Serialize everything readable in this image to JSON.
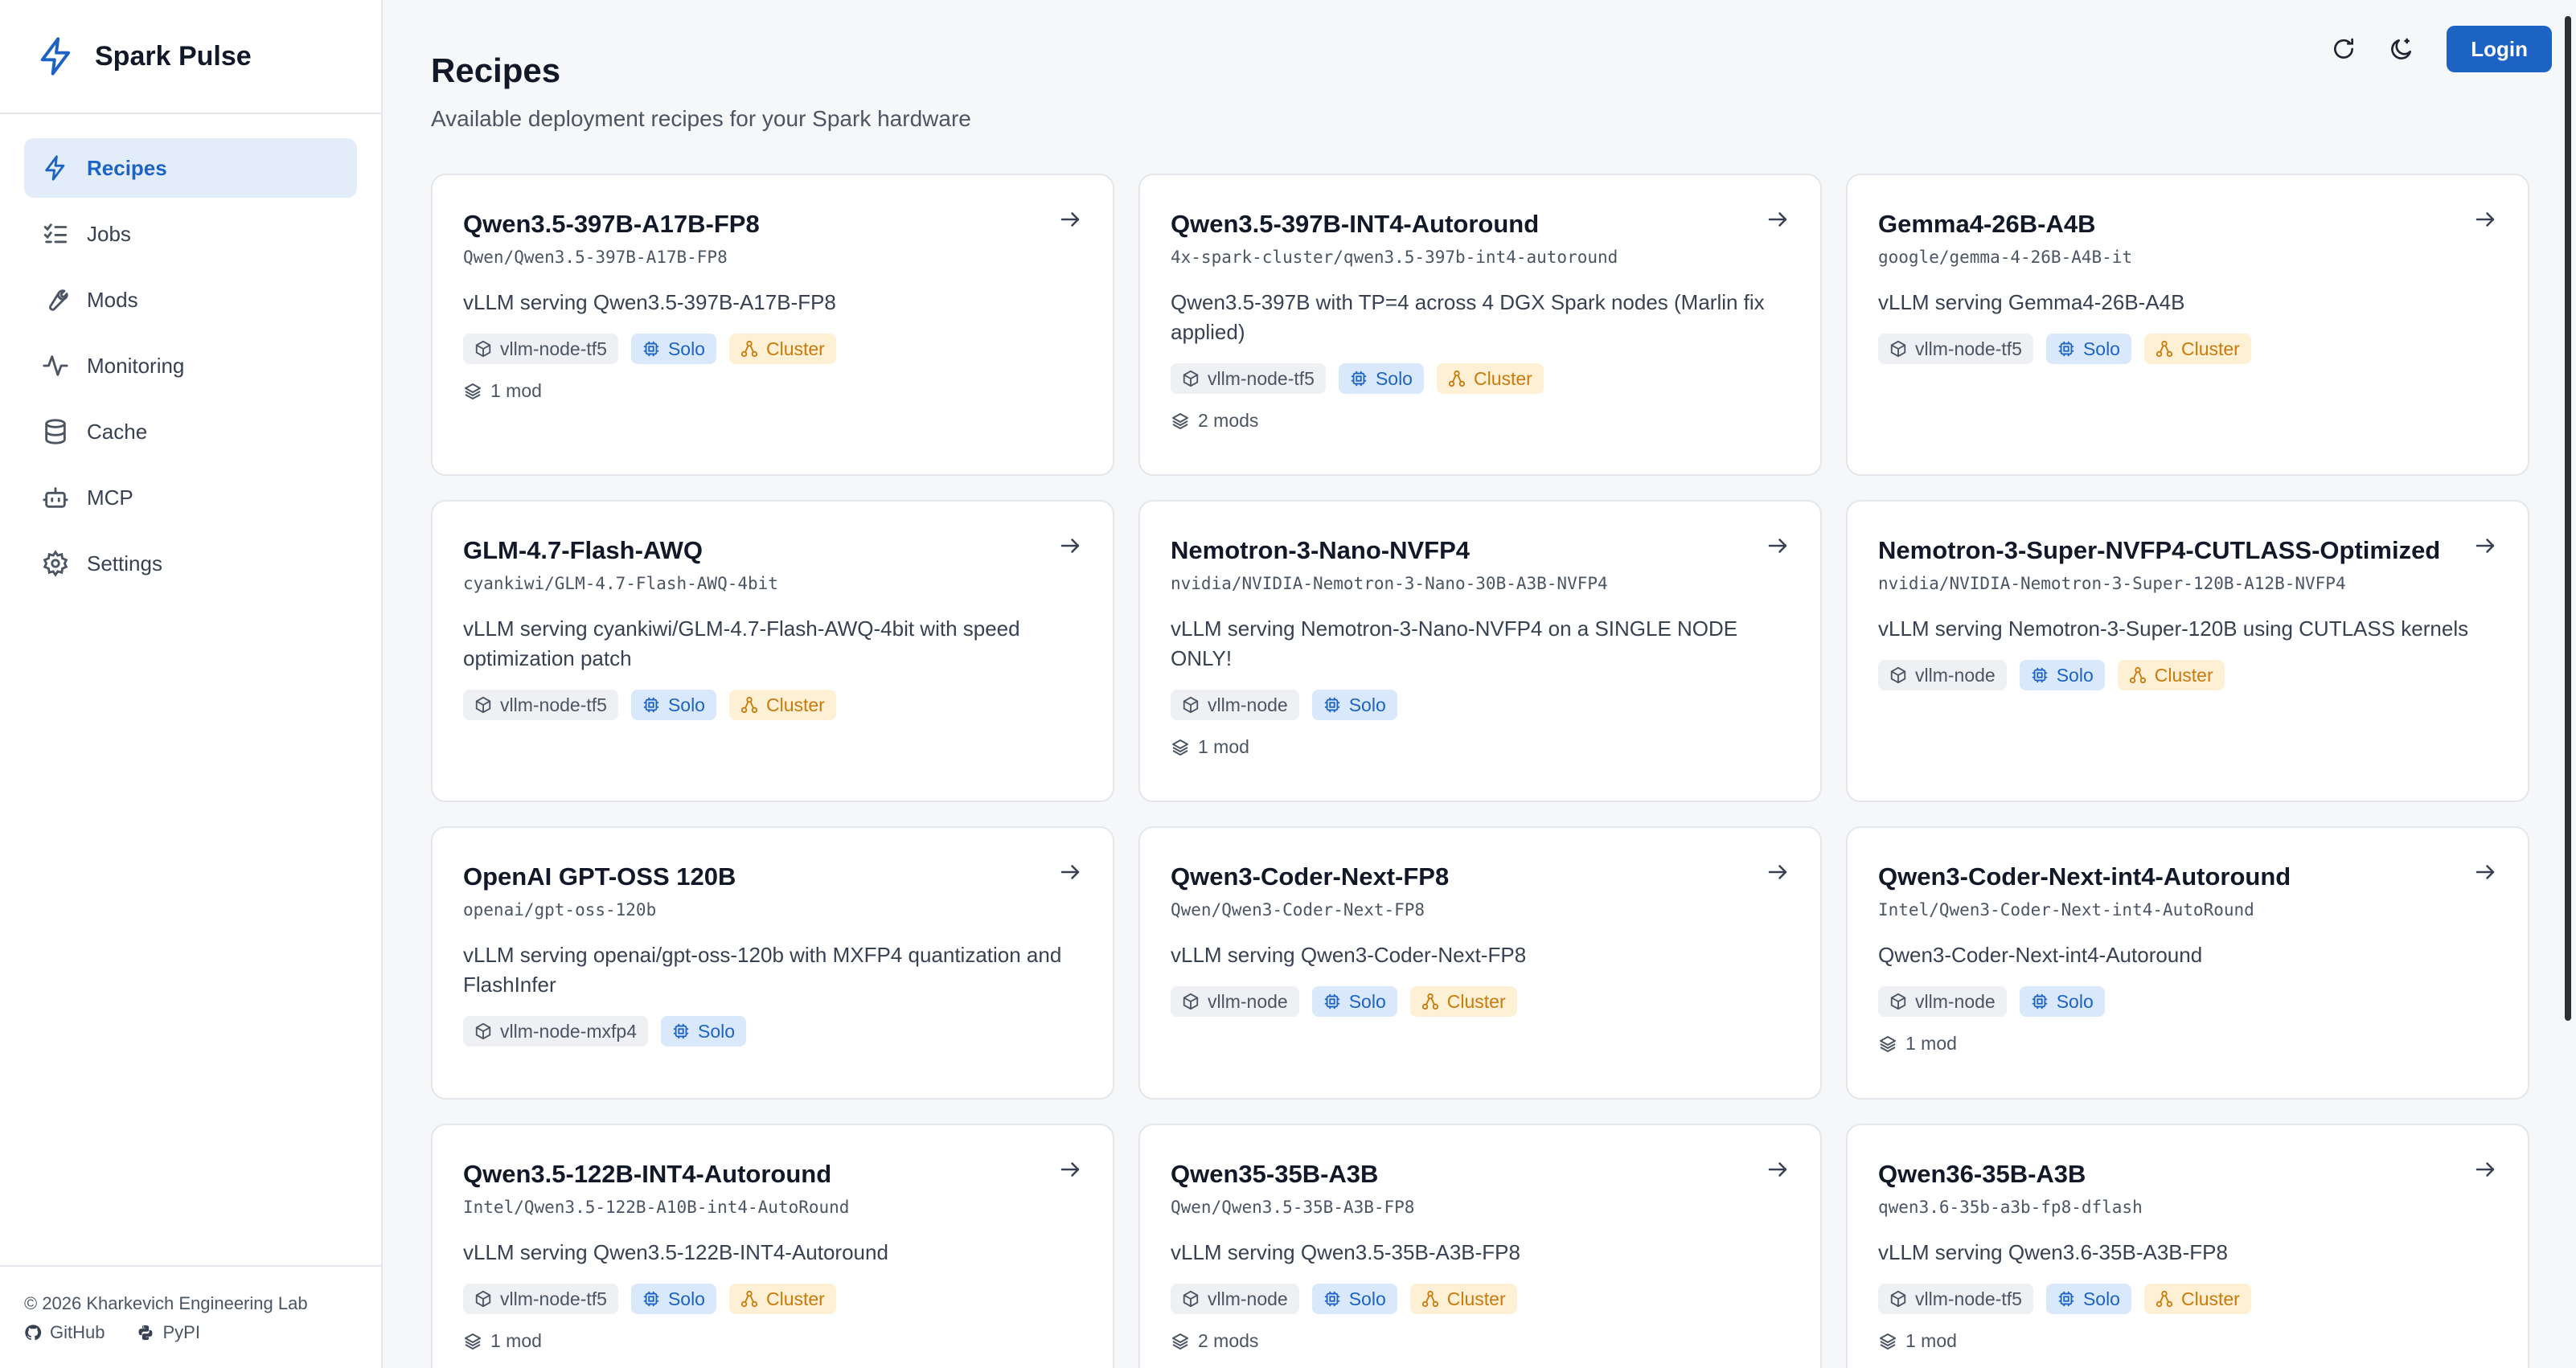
{
  "app": {
    "name": "Spark Pulse"
  },
  "sidebar": {
    "items": [
      {
        "label": "Recipes",
        "icon": "lightning-icon",
        "active": true
      },
      {
        "label": "Jobs",
        "icon": "list-check-icon",
        "active": false
      },
      {
        "label": "Mods",
        "icon": "wrench-icon",
        "active": false
      },
      {
        "label": "Monitoring",
        "icon": "activity-icon",
        "active": false
      },
      {
        "label": "Cache",
        "icon": "database-icon",
        "active": false
      },
      {
        "label": "MCP",
        "icon": "robot-icon",
        "active": false
      },
      {
        "label": "Settings",
        "icon": "gear-icon",
        "active": false
      }
    ],
    "footer": {
      "copyright": "© 2026 Kharkevich Engineering Lab",
      "github": "GitHub",
      "pypi": "PyPI"
    }
  },
  "header": {
    "login_label": "Login"
  },
  "page": {
    "title": "Recipes",
    "subtitle": "Available deployment recipes for your Spark hardware"
  },
  "tags": {
    "solo": "Solo",
    "cluster": "Cluster"
  },
  "recipes": [
    {
      "title": "Qwen3.5-397B-A17B-FP8",
      "model": "Qwen/Qwen3.5-397B-A17B-FP8",
      "desc": "vLLM serving Qwen3.5-397B-A17B-FP8",
      "image": "vllm-node-tf5",
      "solo": true,
      "cluster": true,
      "mods": "1 mod"
    },
    {
      "title": "Qwen3.5-397B-INT4-Autoround",
      "model": "4x-spark-cluster/qwen3.5-397b-int4-autoround",
      "desc": "Qwen3.5-397B with TP=4 across 4 DGX Spark nodes (Marlin fix applied)",
      "image": "vllm-node-tf5",
      "solo": true,
      "cluster": true,
      "mods": "2 mods"
    },
    {
      "title": "Gemma4-26B-A4B",
      "model": "google/gemma-4-26B-A4B-it",
      "desc": "vLLM serving Gemma4-26B-A4B",
      "image": "vllm-node-tf5",
      "solo": true,
      "cluster": true,
      "mods": ""
    },
    {
      "title": "GLM-4.7-Flash-AWQ",
      "model": "cyankiwi/GLM-4.7-Flash-AWQ-4bit",
      "desc": "vLLM serving cyankiwi/GLM-4.7-Flash-AWQ-4bit with speed optimization patch",
      "image": "vllm-node-tf5",
      "solo": true,
      "cluster": true,
      "mods": ""
    },
    {
      "title": "Nemotron-3-Nano-NVFP4",
      "model": "nvidia/NVIDIA-Nemotron-3-Nano-30B-A3B-NVFP4",
      "desc": "vLLM serving Nemotron-3-Nano-NVFP4 on a SINGLE NODE ONLY!",
      "image": "vllm-node",
      "solo": true,
      "cluster": false,
      "mods": "1 mod"
    },
    {
      "title": "Nemotron-3-Super-NVFP4-CUTLASS-Optimized",
      "model": "nvidia/NVIDIA-Nemotron-3-Super-120B-A12B-NVFP4",
      "desc": "vLLM serving Nemotron-3-Super-120B using CUTLASS kernels",
      "image": "vllm-node",
      "solo": true,
      "cluster": true,
      "mods": ""
    },
    {
      "title": "OpenAI GPT-OSS 120B",
      "model": "openai/gpt-oss-120b",
      "desc": "vLLM serving openai/gpt-oss-120b with MXFP4 quantization and FlashInfer",
      "image": "vllm-node-mxfp4",
      "solo": true,
      "cluster": false,
      "mods": ""
    },
    {
      "title": "Qwen3-Coder-Next-FP8",
      "model": "Qwen/Qwen3-Coder-Next-FP8",
      "desc": "vLLM serving Qwen3-Coder-Next-FP8",
      "image": "vllm-node",
      "solo": true,
      "cluster": true,
      "mods": ""
    },
    {
      "title": "Qwen3-Coder-Next-int4-Autoround",
      "model": "Intel/Qwen3-Coder-Next-int4-AutoRound",
      "desc": "Qwen3-Coder-Next-int4-Autoround",
      "image": "vllm-node",
      "solo": true,
      "cluster": false,
      "mods": "1 mod"
    },
    {
      "title": "Qwen3.5-122B-INT4-Autoround",
      "model": "Intel/Qwen3.5-122B-A10B-int4-AutoRound",
      "desc": "vLLM serving Qwen3.5-122B-INT4-Autoround",
      "image": "vllm-node-tf5",
      "solo": true,
      "cluster": true,
      "mods": "1 mod"
    },
    {
      "title": "Qwen35-35B-A3B",
      "model": "Qwen/Qwen3.5-35B-A3B-FP8",
      "desc": "vLLM serving Qwen3.5-35B-A3B-FP8",
      "image": "vllm-node",
      "solo": true,
      "cluster": true,
      "mods": "2 mods"
    },
    {
      "title": "Qwen36-35B-A3B",
      "model": "qwen3.6-35b-a3b-fp8-dflash",
      "desc": "vLLM serving Qwen3.6-35B-A3B-FP8",
      "image": "vllm-node-tf5",
      "solo": true,
      "cluster": true,
      "mods": "1 mod"
    }
  ]
}
